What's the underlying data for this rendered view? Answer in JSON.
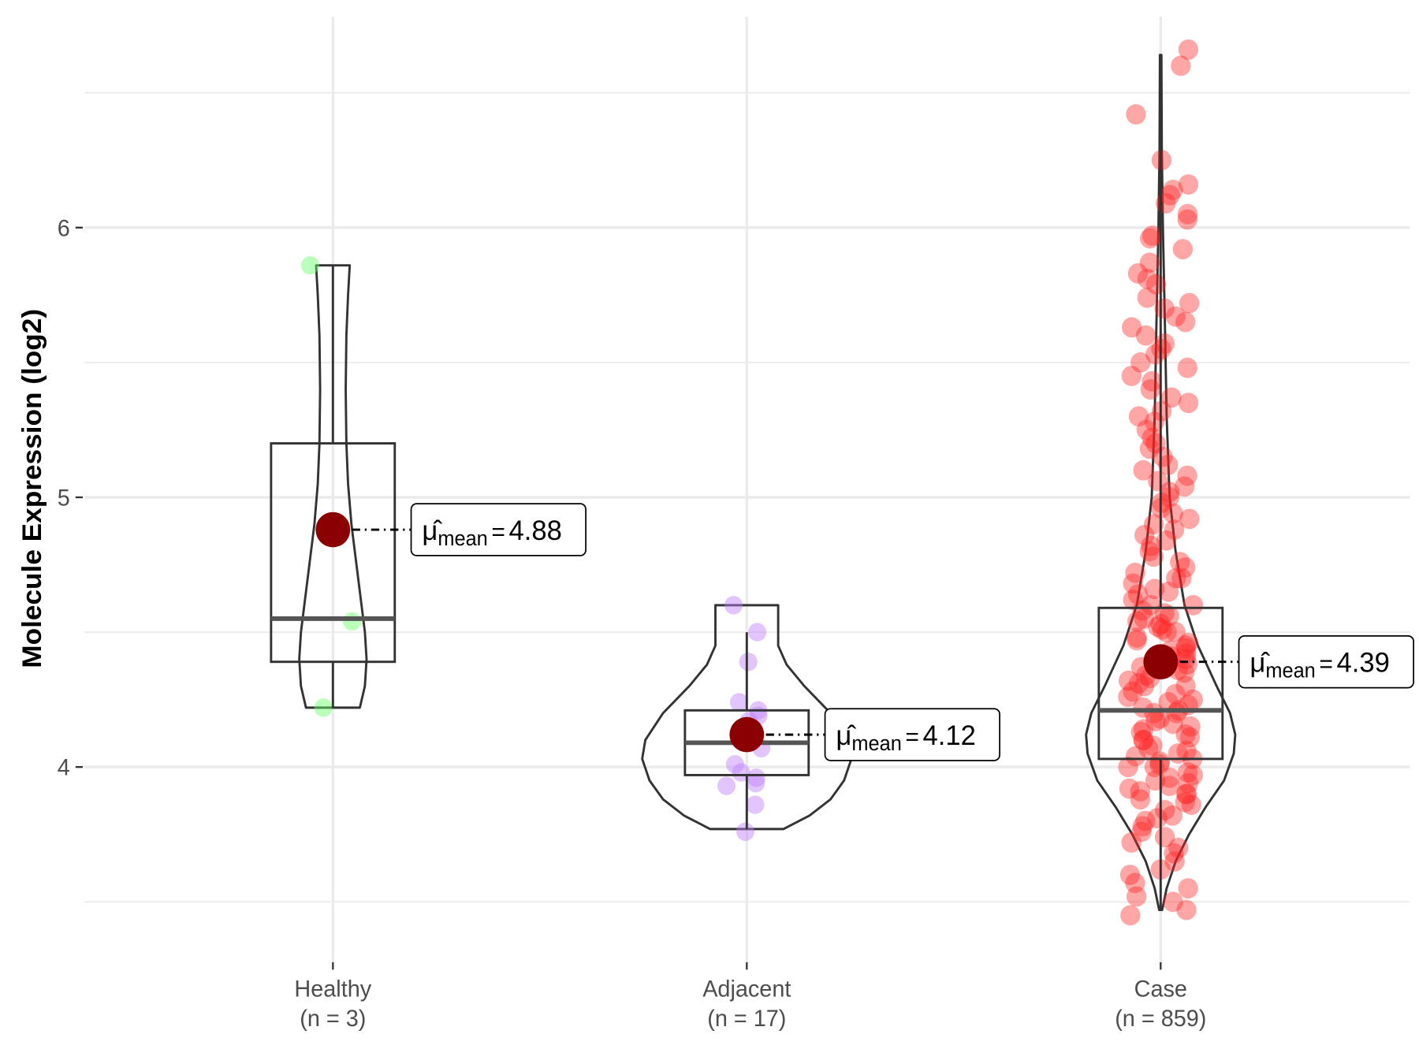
{
  "chart_data": {
    "type": "violin",
    "title": "",
    "xlabel": "",
    "ylabel": "Molecule Expression (log2)",
    "ylim": [
      3.28,
      6.78
    ],
    "yticks": [
      4,
      5,
      6
    ],
    "ytick_labels": [
      "4",
      "5",
      "6"
    ],
    "grid": true,
    "groups": [
      {
        "name": "Healthy",
        "n_label": "(n = 3)",
        "color": "#66ff66",
        "mean": 4.88,
        "mean_label": "4.88",
        "box": {
          "q1": 4.39,
          "median": 4.55,
          "q3": 5.2,
          "whisker_low": 4.22,
          "whisker_high": 5.86
        },
        "violin": [
          [
            4.22,
            0.8
          ],
          [
            4.3,
            0.95
          ],
          [
            4.4,
            1.0
          ],
          [
            4.5,
            0.95
          ],
          [
            4.6,
            0.85
          ],
          [
            4.75,
            0.7
          ],
          [
            4.9,
            0.55
          ],
          [
            5.05,
            0.45
          ],
          [
            5.2,
            0.4
          ],
          [
            5.4,
            0.38
          ],
          [
            5.6,
            0.4
          ],
          [
            5.75,
            0.45
          ],
          [
            5.86,
            0.5
          ]
        ],
        "violin_max_halfwidth": 37,
        "points": [
          5.86,
          4.54,
          4.22
        ]
      },
      {
        "name": "Adjacent",
        "n_label": "(n = 17)",
        "color": "#bf7fff",
        "mean": 4.12,
        "mean_label": "4.12",
        "box": {
          "q1": 3.97,
          "median": 4.09,
          "q3": 4.21,
          "whisker_low": 3.77,
          "whisker_high": 4.5
        },
        "violin": [
          [
            3.77,
            0.35
          ],
          [
            3.82,
            0.6
          ],
          [
            3.88,
            0.8
          ],
          [
            3.95,
            0.93
          ],
          [
            4.03,
            1.0
          ],
          [
            4.1,
            0.97
          ],
          [
            4.2,
            0.8
          ],
          [
            4.3,
            0.55
          ],
          [
            4.38,
            0.38
          ],
          [
            4.45,
            0.3
          ],
          [
            4.52,
            0.3
          ],
          [
            4.57,
            0.3
          ],
          [
            4.6,
            0.3
          ]
        ],
        "violin_max_halfwidth": 115,
        "points": [
          4.6,
          4.5,
          4.39,
          4.24,
          4.21,
          4.19,
          4.17,
          4.12,
          4.1,
          4.07,
          4.01,
          3.98,
          3.96,
          3.94,
          3.93,
          3.86,
          3.76
        ]
      },
      {
        "name": "Case",
        "n_label": "(n = 859)",
        "color": "#ff2020",
        "mean": 4.39,
        "mean_label": "4.39",
        "box": {
          "q1": 4.03,
          "median": 4.21,
          "q3": 4.59,
          "whisker_low": 3.47,
          "whisker_high": 6.64
        },
        "violin": [
          [
            3.47,
            0.02
          ],
          [
            3.55,
            0.08
          ],
          [
            3.65,
            0.2
          ],
          [
            3.75,
            0.38
          ],
          [
            3.85,
            0.6
          ],
          [
            3.95,
            0.85
          ],
          [
            4.05,
            0.98
          ],
          [
            4.12,
            1.0
          ],
          [
            4.2,
            0.93
          ],
          [
            4.3,
            0.75
          ],
          [
            4.45,
            0.5
          ],
          [
            4.6,
            0.32
          ],
          [
            4.8,
            0.2
          ],
          [
            5.0,
            0.12
          ],
          [
            5.3,
            0.08
          ],
          [
            5.6,
            0.06
          ],
          [
            6.0,
            0.03
          ],
          [
            6.3,
            0.015
          ],
          [
            6.64,
            0.01
          ]
        ],
        "violin_max_halfwidth": 82,
        "points": [
          6.66,
          6.6,
          6.42,
          6.25,
          6.16,
          6.14,
          6.12,
          6.09,
          6.05,
          6.03,
          5.97,
          5.96,
          5.92,
          5.87,
          5.83,
          5.81,
          5.79,
          5.74,
          5.72,
          5.7,
          5.67,
          5.65,
          5.63,
          5.6,
          5.57,
          5.55,
          5.53,
          5.5,
          5.48,
          5.45,
          5.43,
          5.4,
          5.37,
          5.35,
          5.32,
          5.3,
          5.28,
          5.25,
          5.22,
          5.2,
          5.18,
          5.15,
          5.12,
          5.1,
          5.08,
          5.06,
          5.04,
          5.02,
          5.0,
          4.98,
          4.96,
          4.94,
          4.92,
          4.9,
          4.88,
          4.86,
          4.84,
          4.82,
          4.8,
          4.78,
          4.76,
          4.74,
          4.72,
          4.7,
          4.68,
          4.66,
          4.64,
          4.62,
          4.6,
          4.58,
          4.56,
          4.54,
          4.52,
          4.5,
          4.48,
          4.46,
          4.44,
          4.42,
          4.4,
          4.38,
          4.36,
          4.34,
          4.32,
          4.3,
          4.28,
          4.26,
          4.24,
          4.22,
          4.2,
          4.18,
          4.16,
          4.14,
          4.12,
          4.1,
          4.08,
          4.06,
          4.04,
          4.02,
          4.0,
          3.98,
          3.96,
          3.94,
          3.92,
          3.9,
          3.88,
          3.86,
          3.84,
          3.82,
          3.8,
          3.78,
          3.76,
          3.74,
          3.72,
          3.7,
          3.68,
          3.65,
          3.62,
          3.6,
          3.57,
          3.55,
          3.52,
          3.5,
          3.47,
          3.45,
          4.45,
          4.35,
          4.25,
          4.15,
          4.05,
          3.95,
          4.55,
          4.5,
          4.3,
          4.2,
          4.1,
          4.0,
          3.9,
          4.4,
          4.6,
          4.65,
          4.7,
          4.33,
          4.27,
          4.17,
          4.13,
          4.07,
          4.03,
          3.97,
          3.93,
          3.87,
          4.23,
          4.37,
          4.43,
          4.47,
          4.53,
          4.57,
          4.21,
          4.11,
          4.01,
          3.91,
          3.81,
          4.31,
          4.41,
          4.51
        ]
      }
    ],
    "mean_symbol": "μ̂",
    "mean_subscript": "mean",
    "mean_eq": "="
  }
}
